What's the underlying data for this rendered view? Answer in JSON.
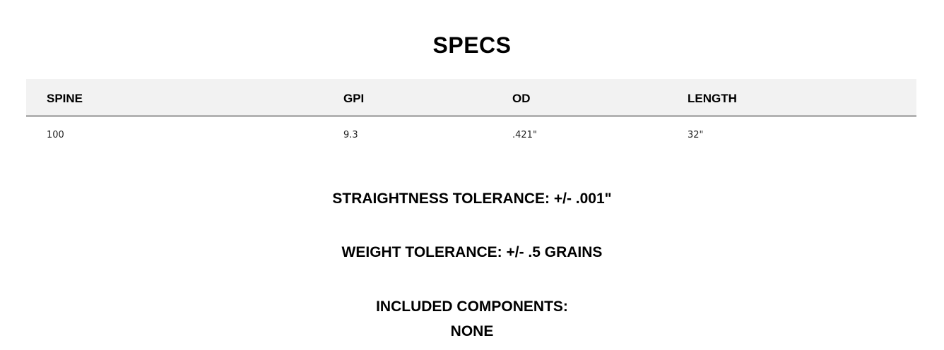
{
  "title": "SPECS",
  "table": {
    "headers": [
      "SPINE",
      "GPI",
      "OD",
      "LENGTH"
    ],
    "rows": [
      [
        "100",
        "9.3",
        ".421\"",
        "32\""
      ]
    ]
  },
  "straightness": "STRAIGHTNESS TOLERANCE: +/- .001\"",
  "weight": "WEIGHT TOLERANCE: +/- .5 GRAINS",
  "components_label": "INCLUDED COMPONENTS:",
  "components_value": "NONE"
}
